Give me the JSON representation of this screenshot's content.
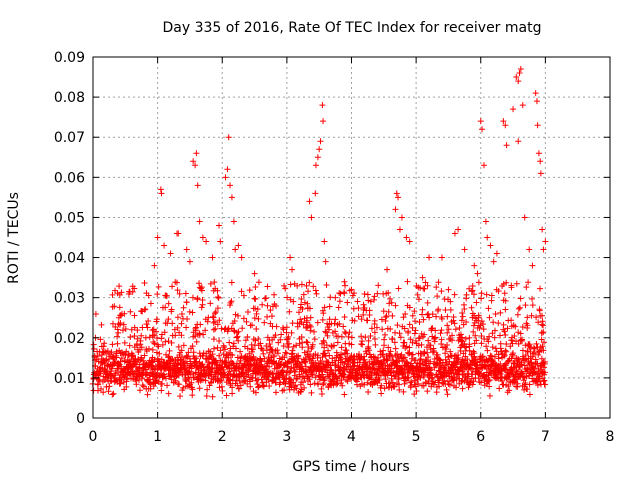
{
  "chart_data": {
    "type": "scatter",
    "title": "Day 335 of 2016, Rate Of TEC Index for receiver matg",
    "xlabel": "GPS time / hours",
    "ylabel": "ROTI / TECUs",
    "xlim": [
      0,
      8
    ],
    "ylim": [
      0,
      0.09
    ],
    "xticks": [
      0,
      1,
      2,
      3,
      4,
      5,
      6,
      7,
      8
    ],
    "yticks": [
      0,
      0.01,
      0.02,
      0.03,
      0.04,
      0.05,
      0.06,
      0.07,
      0.08,
      0.09
    ],
    "xtick_labels": [
      "0",
      "1",
      "2",
      "3",
      "4",
      "5",
      "6",
      "7",
      "8"
    ],
    "ytick_labels": [
      "0",
      "0.01",
      "0.02",
      "0.03",
      "0.04",
      "0.05",
      "0.06",
      "0.07",
      "0.08",
      "0.09"
    ],
    "grid": true,
    "marker": "+",
    "color": "#ff0000",
    "series": [
      {
        "name": "ROTI",
        "points": [
          [
            1.05,
            0.057
          ],
          [
            1.06,
            0.056
          ],
          [
            1.3,
            0.046
          ],
          [
            1.32,
            0.046
          ],
          [
            1.55,
            0.064
          ],
          [
            1.58,
            0.063
          ],
          [
            1.6,
            0.066
          ],
          [
            1.62,
            0.058
          ],
          [
            1.65,
            0.049
          ],
          [
            1.7,
            0.045
          ],
          [
            2.05,
            0.06
          ],
          [
            2.08,
            0.062
          ],
          [
            2.1,
            0.07
          ],
          [
            2.12,
            0.058
          ],
          [
            2.15,
            0.055
          ],
          [
            2.18,
            0.049
          ],
          [
            2.2,
            0.042
          ],
          [
            1.95,
            0.048
          ],
          [
            1.97,
            0.044
          ],
          [
            3.05,
            0.04
          ],
          [
            3.08,
            0.037
          ],
          [
            3.35,
            0.054
          ],
          [
            3.38,
            0.05
          ],
          [
            3.45,
            0.063
          ],
          [
            3.48,
            0.065
          ],
          [
            3.5,
            0.067
          ],
          [
            3.52,
            0.069
          ],
          [
            3.55,
            0.078
          ],
          [
            3.56,
            0.074
          ],
          [
            3.58,
            0.044
          ],
          [
            3.6,
            0.039
          ],
          [
            3.44,
            0.056
          ],
          [
            4.7,
            0.056
          ],
          [
            4.72,
            0.055
          ],
          [
            4.68,
            0.052
          ],
          [
            4.75,
            0.047
          ],
          [
            4.78,
            0.05
          ],
          [
            4.85,
            0.045
          ],
          [
            4.9,
            0.044
          ],
          [
            5.6,
            0.046
          ],
          [
            5.65,
            0.047
          ],
          [
            5.4,
            0.04
          ],
          [
            6.0,
            0.074
          ],
          [
            6.02,
            0.072
          ],
          [
            6.05,
            0.063
          ],
          [
            6.08,
            0.049
          ],
          [
            6.1,
            0.045
          ],
          [
            6.15,
            0.043
          ],
          [
            6.35,
            0.074
          ],
          [
            6.38,
            0.073
          ],
          [
            6.4,
            0.068
          ],
          [
            6.55,
            0.085
          ],
          [
            6.58,
            0.084
          ],
          [
            6.6,
            0.086
          ],
          [
            6.62,
            0.087
          ],
          [
            6.65,
            0.078
          ],
          [
            6.68,
            0.05
          ],
          [
            6.58,
            0.069
          ],
          [
            6.85,
            0.081
          ],
          [
            6.87,
            0.079
          ],
          [
            6.88,
            0.073
          ],
          [
            6.9,
            0.066
          ],
          [
            6.92,
            0.064
          ],
          [
            6.93,
            0.061
          ],
          [
            6.95,
            0.047
          ],
          [
            6.97,
            0.042
          ],
          [
            7.0,
            0.044
          ],
          [
            6.5,
            0.077
          ],
          [
            1.0,
            0.045
          ],
          [
            1.1,
            0.043
          ],
          [
            0.95,
            0.038
          ],
          [
            1.2,
            0.041
          ],
          [
            1.45,
            0.042
          ],
          [
            1.5,
            0.039
          ],
          [
            1.75,
            0.044
          ],
          [
            1.85,
            0.04
          ],
          [
            2.25,
            0.043
          ],
          [
            2.3,
            0.04
          ],
          [
            2.5,
            0.036
          ],
          [
            3.1,
            0.029
          ],
          [
            3.75,
            0.03
          ],
          [
            3.9,
            0.033
          ],
          [
            4.0,
            0.032
          ],
          [
            4.55,
            0.037
          ],
          [
            5.1,
            0.035
          ],
          [
            5.2,
            0.04
          ],
          [
            5.75,
            0.042
          ],
          [
            5.9,
            0.038
          ],
          [
            6.2,
            0.039
          ],
          [
            6.25,
            0.041
          ],
          [
            6.75,
            0.042
          ],
          [
            6.8,
            0.038
          ],
          [
            0.4,
            0.025
          ],
          [
            0.6,
            0.022
          ],
          [
            0.8,
            0.027
          ],
          [
            2.7,
            0.028
          ],
          [
            4.3,
            0.029
          ],
          [
            4.4,
            0.031
          ],
          [
            5.5,
            0.032
          ],
          [
            5.95,
            0.036
          ]
        ]
      }
    ],
    "dense_band": {
      "description": "Dense noise band of points across 0 to 7 hours",
      "x_range": [
        0,
        7
      ],
      "y_range": [
        0.003,
        0.02
      ],
      "typical_y": 0.012
    }
  }
}
